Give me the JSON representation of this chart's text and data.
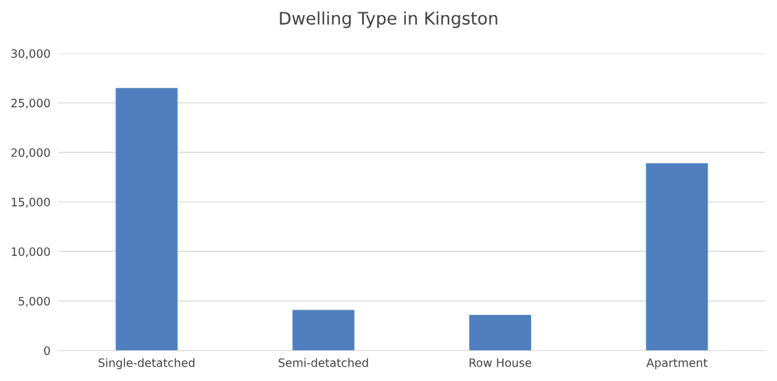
{
  "chart_data": {
    "type": "bar",
    "title": "Dwelling Type in Kingston",
    "categories": [
      "Single-detatched",
      "Semi-detatched",
      "Row House",
      "Apartment"
    ],
    "values": [
      26500,
      4100,
      3600,
      18900
    ],
    "color": "#4f7fbe",
    "ylim": [
      0,
      30000
    ],
    "yticks": [
      {
        "value": 0,
        "label": "0"
      },
      {
        "value": 5000,
        "label": "5,000"
      },
      {
        "value": 10000,
        "label": "10,000"
      },
      {
        "value": 15000,
        "label": "15,000"
      },
      {
        "value": 20000,
        "label": "20,000"
      },
      {
        "value": 25000,
        "label": "25,000"
      },
      {
        "value": 30000,
        "label": "30,000"
      }
    ],
    "grid": "y"
  }
}
